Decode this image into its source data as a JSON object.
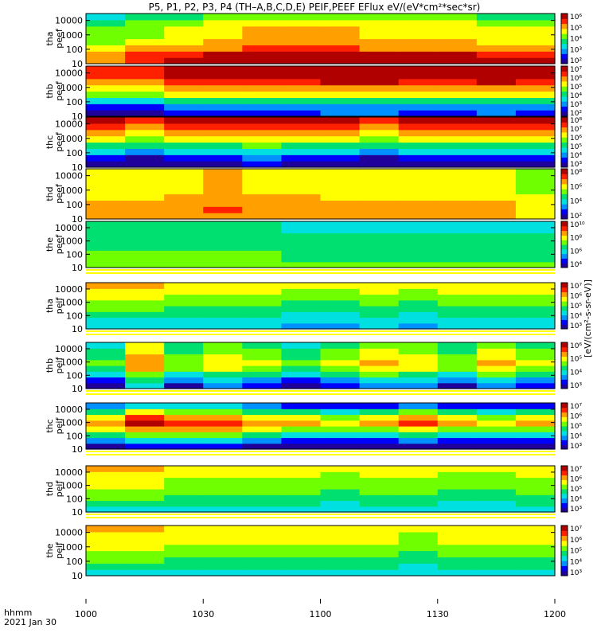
{
  "title": "P5, P1, P2, P3, P4 (TH–A,B,C,D,E) PEIF,PEEF EFlux eV/(eV*cm²*sec*sr)",
  "footer": {
    "time_label": "hhmm",
    "date_label": "2021 Jan 30"
  },
  "chart_data": {
    "type": "heatmap",
    "x_ticks": [
      "1000",
      "1030",
      "1100",
      "1130",
      "1200"
    ],
    "x_range": [
      "10:00",
      "12:00"
    ],
    "y_scale": "log",
    "colorbar_label": "[eV/(cm²-s-sr-eV)]",
    "colormap": [
      "#20009a",
      "#0000ff",
      "#0090ff",
      "#00e0e0",
      "#00e070",
      "#70ff00",
      "#ffff00",
      "#ffa000",
      "#ff2000",
      "#b00000"
    ],
    "panels": [
      {
        "probe": "tha",
        "species": "peef",
        "ylabel": [
          "tha",
          "peef"
        ],
        "y_ticks": [
          "10000",
          "1000",
          "100",
          "10"
        ],
        "cbar_ticks": [
          "10⁶",
          "10⁵",
          "10⁴",
          "10³",
          "10²"
        ],
        "ylim": [
          10,
          30000
        ],
        "energy_profile": [
          0.85,
          0.8,
          0.7,
          0.6,
          0.55,
          0.55,
          0.5,
          0.4
        ],
        "time_profile": [
          -0.05,
          0.0,
          0.05,
          0.1,
          0.15,
          0.15,
          0.15,
          0.1,
          0.1,
          0.1,
          0.05,
          0.05
        ],
        "gap_bottom": false
      },
      {
        "probe": "thb",
        "species": "peef",
        "ylabel": [
          "thb",
          "peef"
        ],
        "y_ticks": [
          "10000",
          "1000",
          "100",
          "10"
        ],
        "cbar_ticks": [
          "10⁷",
          "10⁶",
          "10⁵",
          "10⁴",
          "10³",
          "10²"
        ],
        "ylim": [
          10,
          30000
        ],
        "energy_profile": [
          0.15,
          0.2,
          0.4,
          0.6,
          0.7,
          0.85,
          0.9,
          0.9
        ],
        "time_profile": [
          -0.05,
          -0.1,
          0.0,
          0.0,
          0.0,
          0.0,
          0.05,
          0.05,
          0.0,
          0.0,
          0.05,
          0.0
        ],
        "gap_bottom": false
      },
      {
        "probe": "thc",
        "species": "peef",
        "ylabel": [
          "thc",
          "peef"
        ],
        "y_ticks": [
          "10000",
          "1000",
          "100",
          "10"
        ],
        "cbar_ticks": [
          "10⁸",
          "10⁷",
          "10⁶",
          "10⁵",
          "10⁴",
          "10³"
        ],
        "ylim": [
          10,
          30000
        ],
        "energy_profile": [
          0.05,
          0.15,
          0.3,
          0.45,
          0.6,
          0.7,
          0.8,
          0.9
        ],
        "time_profile": [
          0.0,
          -0.05,
          0.0,
          0.0,
          0.05,
          0.0,
          0.0,
          -0.05,
          0.0,
          0.0,
          0.0,
          0.0
        ],
        "gap_bottom": false
      },
      {
        "probe": "thd",
        "species": "peef",
        "ylabel": [
          "thd",
          "peef"
        ],
        "y_ticks": [
          "10000",
          "1000",
          "100",
          "10"
        ],
        "cbar_ticks": [
          "10⁸",
          "10⁶",
          "10⁴",
          "10²"
        ],
        "ylim": [
          10,
          30000
        ],
        "energy_profile": [
          0.7,
          0.72,
          0.7,
          0.68,
          0.62,
          0.6,
          0.62,
          0.6
        ],
        "time_profile": [
          0.0,
          0.0,
          0.05,
          0.1,
          0.05,
          0.05,
          0.0,
          0.0,
          0.0,
          0.0,
          0.0,
          -0.05
        ],
        "gap_bottom": false
      },
      {
        "probe": "the",
        "species": "peef",
        "ylabel": [
          "the",
          "peef"
        ],
        "y_ticks": [
          "10000",
          "1000",
          "100",
          "10"
        ],
        "cbar_ticks": [
          "10¹⁰",
          "10⁸",
          "10⁶",
          "10⁴"
        ],
        "ylim": [
          10,
          30000
        ],
        "energy_profile": [
          0.55,
          0.5,
          0.5,
          0.48,
          0.45,
          0.45,
          0.42,
          0.4
        ],
        "time_profile": [
          0.0,
          0.0,
          0.0,
          0.0,
          0.0,
          -0.02,
          -0.02,
          -0.05,
          -0.05,
          -0.05,
          -0.05,
          -0.05
        ],
        "gap_bottom": true
      },
      {
        "probe": "tha",
        "species": "peif",
        "ylabel": [
          "tha",
          "peif"
        ],
        "y_ticks": [
          "10000",
          "1000",
          "100",
          "10"
        ],
        "cbar_ticks": [
          "10⁷",
          "10⁶",
          "10⁵",
          "10⁴",
          "10³"
        ],
        "ylim": [
          10,
          30000
        ],
        "energy_profile": [
          0.3,
          0.35,
          0.4,
          0.45,
          0.5,
          0.55,
          0.6,
          0.65
        ],
        "time_profile": [
          0.05,
          0.05,
          0.0,
          0.0,
          0.0,
          -0.05,
          -0.05,
          0.0,
          -0.05,
          0.0,
          0.0,
          0.0
        ],
        "gap_bottom": true
      },
      {
        "probe": "thb",
        "species": "peif",
        "ylabel": [
          "thb",
          "peif"
        ],
        "y_ticks": [
          "10000",
          "1000",
          "100",
          "10"
        ],
        "cbar_ticks": [
          "10⁶",
          "10⁵",
          "10⁴",
          "10³"
        ],
        "ylim": [
          10,
          30000
        ],
        "energy_profile": [
          0.15,
          0.25,
          0.4,
          0.55,
          0.6,
          0.55,
          0.5,
          0.45
        ],
        "time_profile": [
          -0.1,
          0.15,
          -0.05,
          0.05,
          0.0,
          -0.1,
          0.0,
          0.1,
          0.05,
          -0.05,
          0.1,
          0.0
        ],
        "gap_bottom": true
      },
      {
        "probe": "thc",
        "species": "peif",
        "ylabel": [
          "thc",
          "peif"
        ],
        "y_ticks": [
          "10000",
          "1000",
          "100",
          "10"
        ],
        "cbar_ticks": [
          "10⁷",
          "10⁶",
          "10⁵",
          "10⁴",
          "10³"
        ],
        "ylim": [
          10,
          30000
        ],
        "energy_profile": [
          0.0,
          0.2,
          0.4,
          0.6,
          0.75,
          0.65,
          0.45,
          0.2
        ],
        "time_profile": [
          0.0,
          0.15,
          0.1,
          0.1,
          0.0,
          -0.05,
          -0.1,
          -0.05,
          0.05,
          -0.05,
          -0.1,
          -0.05
        ],
        "gap_bottom": true
      },
      {
        "probe": "thd",
        "species": "peif",
        "ylabel": [
          "thd",
          "peif"
        ],
        "y_ticks": [
          "10000",
          "1000",
          "100",
          "10"
        ],
        "cbar_ticks": [
          "10⁷",
          "10⁶",
          "10⁵",
          "10⁴",
          "10³"
        ],
        "ylim": [
          10,
          30000
        ],
        "energy_profile": [
          0.35,
          0.4,
          0.45,
          0.5,
          0.55,
          0.58,
          0.62,
          0.65
        ],
        "time_profile": [
          0.05,
          0.05,
          0.0,
          0.0,
          0.0,
          0.0,
          -0.05,
          0.0,
          0.0,
          -0.05,
          -0.05,
          0.0
        ],
        "gap_bottom": true
      },
      {
        "probe": "the",
        "species": "peif",
        "ylabel": [
          "the",
          "peif"
        ],
        "y_ticks": [
          "10000",
          "1000",
          "100",
          "10"
        ],
        "cbar_ticks": [
          "10⁷",
          "10⁶",
          "10⁵",
          "10⁴",
          "10³"
        ],
        "ylim": [
          10,
          30000
        ],
        "energy_profile": [
          0.35,
          0.4,
          0.45,
          0.5,
          0.55,
          0.6,
          0.62,
          0.65
        ],
        "time_profile": [
          0.05,
          0.05,
          0.0,
          0.0,
          0.0,
          0.0,
          0.0,
          0.0,
          -0.05,
          0.0,
          0.0,
          0.0
        ],
        "gap_bottom": false
      }
    ]
  }
}
